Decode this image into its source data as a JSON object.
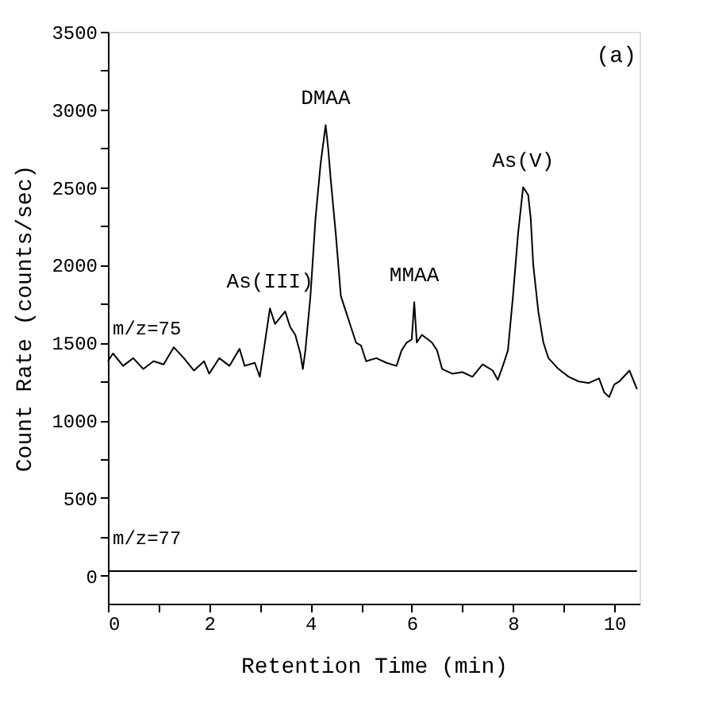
{
  "chart_data": {
    "type": "line",
    "xlabel": "Retention Time (min)",
    "ylabel": "Count Rate (counts/sec)",
    "xlim": [
      0,
      10.5
    ],
    "ylim": [
      -180,
      3500
    ],
    "xticks": [
      0,
      {
        "value": 1,
        "label": null
      },
      2,
      {
        "value": 3,
        "label": null
      },
      4,
      {
        "value": 5,
        "label": null
      },
      6,
      {
        "value": 7,
        "label": null
      },
      8,
      {
        "value": 9,
        "label": null
      },
      10
    ],
    "yticks": [
      0,
      {
        "value": 250,
        "label": null
      },
      500,
      {
        "value": 750,
        "label": null
      },
      1000,
      {
        "value": 1250,
        "label": null
      },
      1500,
      {
        "value": 1750,
        "label": null
      },
      2000,
      {
        "value": 2250,
        "label": null
      },
      2500,
      {
        "value": 2750,
        "label": null
      },
      3000,
      {
        "value": 3250,
        "label": null
      },
      3500
    ],
    "grid": false,
    "marker": "none",
    "line_style": "solid",
    "annotations": [
      "(a)",
      {
        "text": "As(III)",
        "x": 3.2,
        "y": 1720
      },
      {
        "text": "DMAA",
        "x": 4.3,
        "y": 2900
      },
      {
        "text": "MMAA",
        "x": 6.05,
        "y": 1760
      },
      {
        "text": "As(V)",
        "x": 8.2,
        "y": 2500
      }
    ],
    "series": [
      {
        "name": "m/z=75",
        "color": "#000000",
        "x": [
          0.0,
          0.1,
          0.3,
          0.5,
          0.7,
          0.9,
          1.1,
          1.3,
          1.5,
          1.7,
          1.9,
          2.0,
          2.2,
          2.4,
          2.6,
          2.7,
          2.9,
          3.0,
          3.1,
          3.2,
          3.3,
          3.5,
          3.6,
          3.7,
          3.8,
          3.85,
          3.9,
          4.0,
          4.1,
          4.2,
          4.3,
          4.35,
          4.4,
          4.5,
          4.6,
          4.7,
          4.8,
          4.9,
          5.0,
          5.1,
          5.3,
          5.5,
          5.7,
          5.8,
          5.9,
          6.0,
          6.05,
          6.1,
          6.2,
          6.4,
          6.5,
          6.6,
          6.8,
          7.0,
          7.2,
          7.4,
          7.6,
          7.7,
          7.8,
          7.9,
          8.0,
          8.1,
          8.2,
          8.3,
          8.35,
          8.4,
          8.5,
          8.6,
          8.7,
          8.9,
          9.1,
          9.3,
          9.5,
          9.7,
          9.8,
          9.9,
          10.0,
          10.1,
          10.3,
          10.45
        ],
        "values": [
          1380,
          1430,
          1350,
          1400,
          1330,
          1380,
          1360,
          1470,
          1400,
          1320,
          1380,
          1300,
          1400,
          1350,
          1460,
          1350,
          1370,
          1280,
          1500,
          1720,
          1620,
          1700,
          1600,
          1550,
          1430,
          1330,
          1450,
          1800,
          2300,
          2650,
          2900,
          2750,
          2550,
          2200,
          1800,
          1700,
          1600,
          1500,
          1480,
          1380,
          1400,
          1370,
          1350,
          1450,
          1500,
          1520,
          1760,
          1500,
          1550,
          1500,
          1450,
          1330,
          1300,
          1310,
          1280,
          1360,
          1320,
          1260,
          1350,
          1450,
          1800,
          2200,
          2500,
          2450,
          2300,
          2000,
          1700,
          1500,
          1400,
          1330,
          1280,
          1250,
          1240,
          1270,
          1180,
          1150,
          1230,
          1250,
          1320,
          1200
        ]
      },
      {
        "name": "m/z=77",
        "color": "#000000",
        "x": [
          0.0,
          1.0,
          2.0,
          3.0,
          4.0,
          5.0,
          6.0,
          7.0,
          8.0,
          9.0,
          10.0,
          10.45
        ],
        "values": [
          30,
          30,
          30,
          30,
          30,
          30,
          30,
          30,
          30,
          30,
          30,
          30
        ]
      }
    ]
  }
}
